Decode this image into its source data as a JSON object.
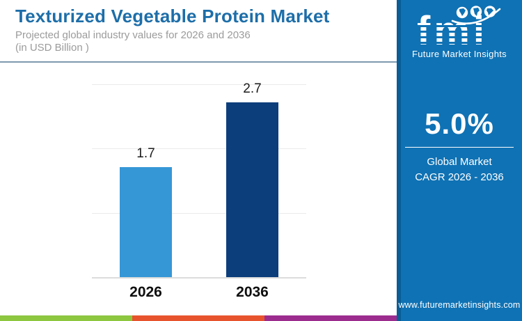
{
  "header": {
    "title": "Texturized Vegetable Protein Market",
    "subtitle_line1": "Projected global industry values for 2026 and 2036",
    "subtitle_line2": "(in USD Billion )"
  },
  "chart_data": {
    "type": "bar",
    "categories": [
      "2026",
      "2036"
    ],
    "values": [
      1.7,
      2.7
    ],
    "value_labels": [
      "1.7",
      "2.7"
    ],
    "title": "Texturized Vegetable Protein Market",
    "subtitle": "Projected global industry values for 2026 and 2036 (in USD Billion )",
    "xlabel": "",
    "ylabel": "",
    "ylim": [
      0,
      3
    ],
    "gridlines": [
      1,
      2,
      3
    ],
    "grid": "horizontal-only",
    "legend": "none",
    "bar_colors": [
      "#3697d6",
      "#0c3e7c"
    ]
  },
  "sidebar": {
    "logo": {
      "text": "fmi",
      "tagline": "Future Market Insights",
      "globe_icons": [
        "globe-americas-icon",
        "globe-europe-africa-icon",
        "globe-asia-icon"
      ]
    },
    "cagr_value": "5.0%",
    "cagr_label_line1": "Global Market",
    "cagr_label_line2": "CAGR 2026 - 2036",
    "website": "www.futuremarketinsights.com",
    "background_color": "#0f72b4"
  },
  "footer_stripe": {
    "colors": [
      "#8dc63f",
      "#e7532d",
      "#9c2d8f"
    ]
  },
  "colors": {
    "title_blue": "#1d6ea9",
    "subtitle_gray": "#9b9b9b",
    "separator": "#7e9ab0",
    "bar_light_blue": "#3697d6",
    "bar_dark_navy": "#0c3e7c",
    "sidebar_blue": "#0f72b4",
    "gridline": "#ebebeb",
    "label_dark": "#1b1b1b"
  }
}
